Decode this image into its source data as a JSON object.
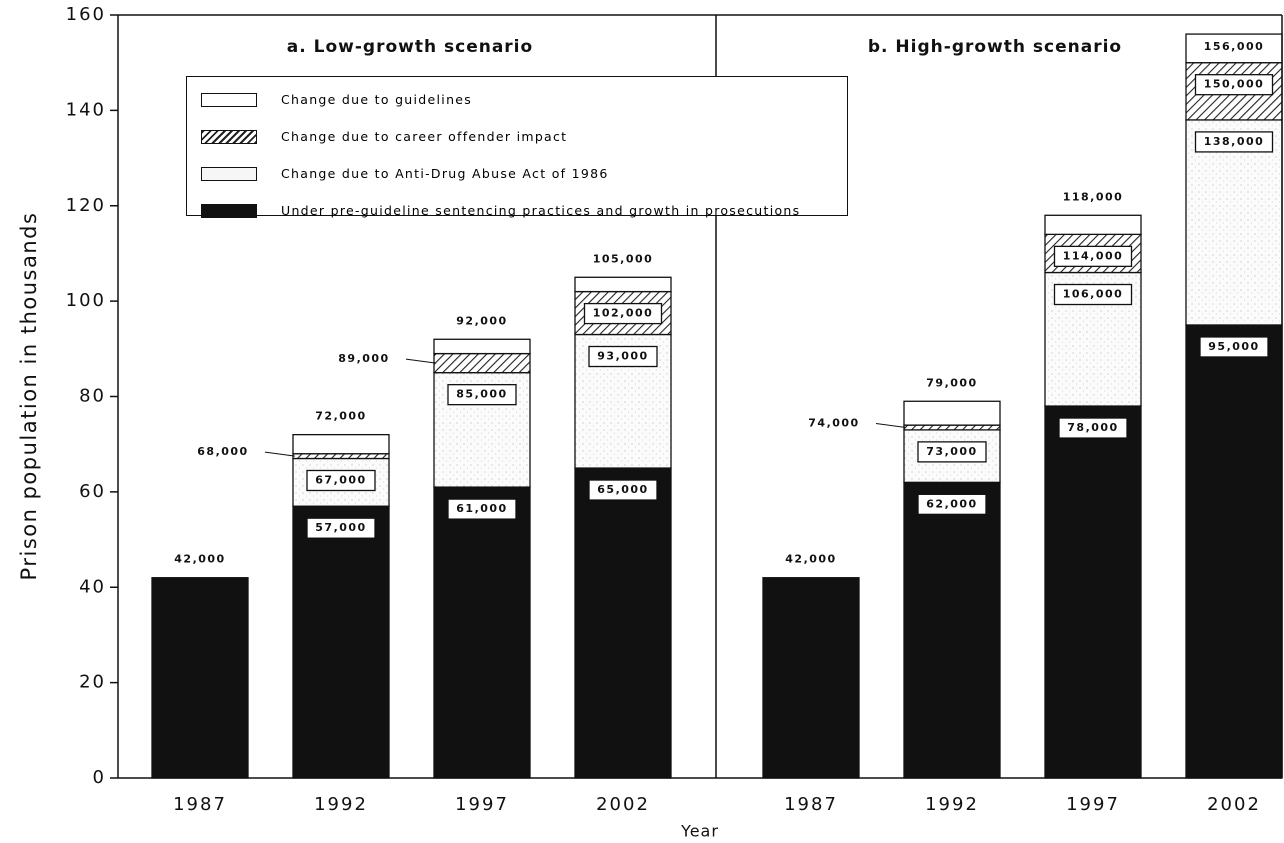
{
  "chart_data": [
    {
      "type": "bar",
      "stacked": true,
      "title": "a. Low-growth scenario",
      "ylabel": "Prison population in thousands",
      "xlabel": "Year",
      "categories": [
        "1987",
        "1992",
        "1997",
        "2002"
      ],
      "ylim": [
        0,
        160
      ],
      "yticks": [
        0,
        20,
        40,
        60,
        80,
        100,
        120,
        140,
        160
      ],
      "legend": "upper left",
      "series": [
        {
          "name": "Under pre-guideline sentencing practices and growth in prosecutions",
          "color": "#111111",
          "pattern": "solid",
          "values": [
            42,
            57,
            61,
            65
          ],
          "total_labels": [
            "42,000",
            "57,000",
            "61,000",
            "65,000"
          ]
        },
        {
          "name": "Change due to Anti-Drug Abuse Act of 1986",
          "color": "#f3f3f3",
          "pattern": "stipple",
          "values": [
            null,
            10,
            24,
            28
          ],
          "total_labels": [
            null,
            "67,000",
            "85,000",
            "93,000"
          ]
        },
        {
          "name": "Change due to career offender impact",
          "color": "#555555",
          "pattern": "hatch",
          "values": [
            null,
            1,
            4,
            9
          ],
          "total_labels": [
            null,
            "68,000",
            "89,000",
            "102,000"
          ]
        },
        {
          "name": "Change due to guidelines",
          "color": "#ffffff",
          "pattern": "solid",
          "values": [
            null,
            4,
            3,
            3
          ],
          "total_labels": [
            null,
            "72,000",
            "92,000",
            "105,000"
          ]
        }
      ]
    },
    {
      "type": "bar",
      "stacked": true,
      "title": "b. High-growth scenario",
      "categories": [
        "1987",
        "1992",
        "1997",
        "2002"
      ],
      "ylim": [
        0,
        160
      ],
      "series": [
        {
          "color": "#111111",
          "pattern": "solid",
          "values": [
            42,
            62,
            78,
            95
          ],
          "total_labels": [
            "42,000",
            "62,000",
            "78,000",
            "95,000"
          ]
        },
        {
          "color": "#f3f3f3",
          "pattern": "stipple",
          "values": [
            null,
            11,
            28,
            43
          ],
          "total_labels": [
            null,
            "73,000",
            "106,000",
            "138,000"
          ]
        },
        {
          "color": "#555555",
          "pattern": "hatch",
          "values": [
            null,
            1,
            8,
            12
          ],
          "total_labels": [
            null,
            "74,000",
            "114,000",
            "150,000"
          ]
        },
        {
          "color": "#ffffff",
          "pattern": "solid",
          "values": [
            null,
            5,
            4,
            6
          ],
          "total_labels": [
            null,
            "79,000",
            "118,000",
            "156,000"
          ]
        }
      ]
    }
  ]
}
